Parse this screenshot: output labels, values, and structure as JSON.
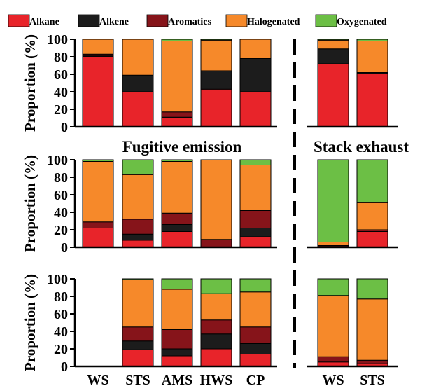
{
  "colors": {
    "Alkane": "#e8242a",
    "Alkene": "#1c1c1c",
    "Aromatics": "#86141a",
    "Halogenated": "#f6892a",
    "Oxygenated": "#6cbf45"
  },
  "legend": [
    "Alkane",
    "Alkene",
    "Aromatics",
    "Halogenated",
    "Oxygenated"
  ],
  "region_labels": {
    "left": "Fugitive emission",
    "right": "Stack exhaust"
  },
  "ylabel": "Proportion (%)",
  "y_ticks": [
    "0",
    "20",
    "40",
    "60",
    "80",
    "100"
  ],
  "x_tick_labels": [
    "WS",
    "STS",
    "AMS",
    "HWS",
    "CP",
    "WS",
    "STS"
  ],
  "chart_data": [
    {
      "type": "bar",
      "stacked": true,
      "ylabel": "Proportion (%)",
      "ylim": [
        0,
        100
      ],
      "categories": [
        "WS",
        "STS",
        "AMS",
        "HWS",
        "CP",
        "WS",
        "STS"
      ],
      "series": [
        {
          "name": "Alkane",
          "values": [
            80,
            40,
            10,
            43,
            40,
            72,
            61
          ]
        },
        {
          "name": "Alkene",
          "values": [
            1,
            19,
            1,
            21,
            38,
            17,
            1
          ]
        },
        {
          "name": "Aromatics",
          "values": [
            2,
            0,
            6,
            0,
            0,
            0,
            0
          ]
        },
        {
          "name": "Halogenated",
          "values": [
            17,
            41,
            81,
            35,
            22,
            10,
            36
          ]
        },
        {
          "name": "Oxygenated",
          "values": [
            0,
            0,
            2,
            1,
            0,
            1,
            2
          ]
        }
      ]
    },
    {
      "type": "bar",
      "stacked": true,
      "ylabel": "Proportion (%)",
      "ylim": [
        0,
        100
      ],
      "categories": [
        "WS",
        "STS",
        "AMS",
        "HWS",
        "CP",
        "WS",
        "STS"
      ],
      "series": [
        {
          "name": "Alkane",
          "values": [
            22,
            8,
            18,
            0,
            12,
            1,
            18
          ]
        },
        {
          "name": "Alkene",
          "values": [
            0,
            7,
            8,
            0,
            10,
            0,
            0
          ]
        },
        {
          "name": "Aromatics",
          "values": [
            7,
            17,
            13,
            9,
            20,
            1,
            2
          ]
        },
        {
          "name": "Halogenated",
          "values": [
            69,
            51,
            59,
            91,
            52,
            4,
            31
          ]
        },
        {
          "name": "Oxygenated",
          "values": [
            2,
            17,
            2,
            0,
            6,
            94,
            49
          ]
        }
      ]
    },
    {
      "type": "bar",
      "stacked": true,
      "ylabel": "Proportion (%)",
      "ylim": [
        0,
        100
      ],
      "categories": [
        "WS",
        "STS",
        "AMS",
        "HWS",
        "CP",
        "WS",
        "STS"
      ],
      "series": [
        {
          "name": "Alkane",
          "values": [
            0,
            19,
            12,
            20,
            14,
            5,
            3
          ]
        },
        {
          "name": "Alkene",
          "values": [
            0,
            10,
            8,
            17,
            12,
            0,
            0
          ]
        },
        {
          "name": "Aromatics",
          "values": [
            0,
            16,
            22,
            16,
            19,
            6,
            4
          ]
        },
        {
          "name": "Halogenated",
          "values": [
            0,
            54,
            46,
            30,
            40,
            70,
            70
          ]
        },
        {
          "name": "Oxygenated",
          "values": [
            0,
            1,
            12,
            17,
            15,
            19,
            23
          ]
        }
      ]
    }
  ]
}
